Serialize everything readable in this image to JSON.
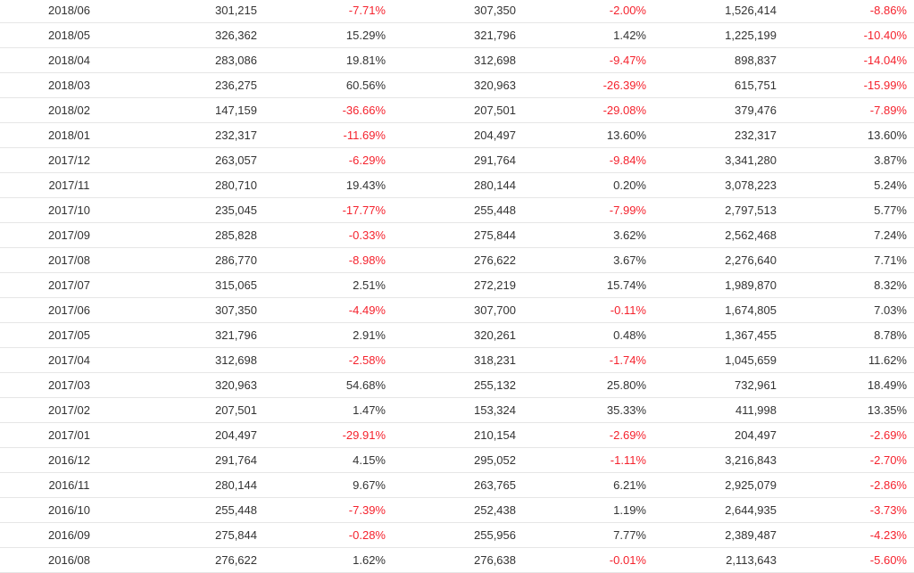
{
  "table": {
    "rows": [
      [
        "2018/06",
        "301,215",
        "-7.71%",
        "307,350",
        "-2.00%",
        "1,526,414",
        "-8.86%"
      ],
      [
        "2018/05",
        "326,362",
        "15.29%",
        "321,796",
        "1.42%",
        "1,225,199",
        "-10.40%"
      ],
      [
        "2018/04",
        "283,086",
        "19.81%",
        "312,698",
        "-9.47%",
        "898,837",
        "-14.04%"
      ],
      [
        "2018/03",
        "236,275",
        "60.56%",
        "320,963",
        "-26.39%",
        "615,751",
        "-15.99%"
      ],
      [
        "2018/02",
        "147,159",
        "-36.66%",
        "207,501",
        "-29.08%",
        "379,476",
        "-7.89%"
      ],
      [
        "2018/01",
        "232,317",
        "-11.69%",
        "204,497",
        "13.60%",
        "232,317",
        "13.60%"
      ],
      [
        "2017/12",
        "263,057",
        "-6.29%",
        "291,764",
        "-9.84%",
        "3,341,280",
        "3.87%"
      ],
      [
        "2017/11",
        "280,710",
        "19.43%",
        "280,144",
        "0.20%",
        "3,078,223",
        "5.24%"
      ],
      [
        "2017/10",
        "235,045",
        "-17.77%",
        "255,448",
        "-7.99%",
        "2,797,513",
        "5.77%"
      ],
      [
        "2017/09",
        "285,828",
        "-0.33%",
        "275,844",
        "3.62%",
        "2,562,468",
        "7.24%"
      ],
      [
        "2017/08",
        "286,770",
        "-8.98%",
        "276,622",
        "3.67%",
        "2,276,640",
        "7.71%"
      ],
      [
        "2017/07",
        "315,065",
        "2.51%",
        "272,219",
        "15.74%",
        "1,989,870",
        "8.32%"
      ],
      [
        "2017/06",
        "307,350",
        "-4.49%",
        "307,700",
        "-0.11%",
        "1,674,805",
        "7.03%"
      ],
      [
        "2017/05",
        "321,796",
        "2.91%",
        "320,261",
        "0.48%",
        "1,367,455",
        "8.78%"
      ],
      [
        "2017/04",
        "312,698",
        "-2.58%",
        "318,231",
        "-1.74%",
        "1,045,659",
        "11.62%"
      ],
      [
        "2017/03",
        "320,963",
        "54.68%",
        "255,132",
        "25.80%",
        "732,961",
        "18.49%"
      ],
      [
        "2017/02",
        "207,501",
        "1.47%",
        "153,324",
        "35.33%",
        "411,998",
        "13.35%"
      ],
      [
        "2017/01",
        "204,497",
        "-29.91%",
        "210,154",
        "-2.69%",
        "204,497",
        "-2.69%"
      ],
      [
        "2016/12",
        "291,764",
        "4.15%",
        "295,052",
        "-1.11%",
        "3,216,843",
        "-2.70%"
      ],
      [
        "2016/11",
        "280,144",
        "9.67%",
        "263,765",
        "6.21%",
        "2,925,079",
        "-2.86%"
      ],
      [
        "2016/10",
        "255,448",
        "-7.39%",
        "252,438",
        "1.19%",
        "2,644,935",
        "-3.73%"
      ],
      [
        "2016/09",
        "275,844",
        "-0.28%",
        "255,956",
        "7.77%",
        "2,389,487",
        "-4.23%"
      ],
      [
        "2016/08",
        "276,622",
        "1.62%",
        "276,638",
        "-0.01%",
        "2,113,643",
        "-5.60%"
      ]
    ]
  },
  "colors": {
    "text": "#333333",
    "negative": "#f5222d",
    "divider": "#e6e6e6"
  }
}
